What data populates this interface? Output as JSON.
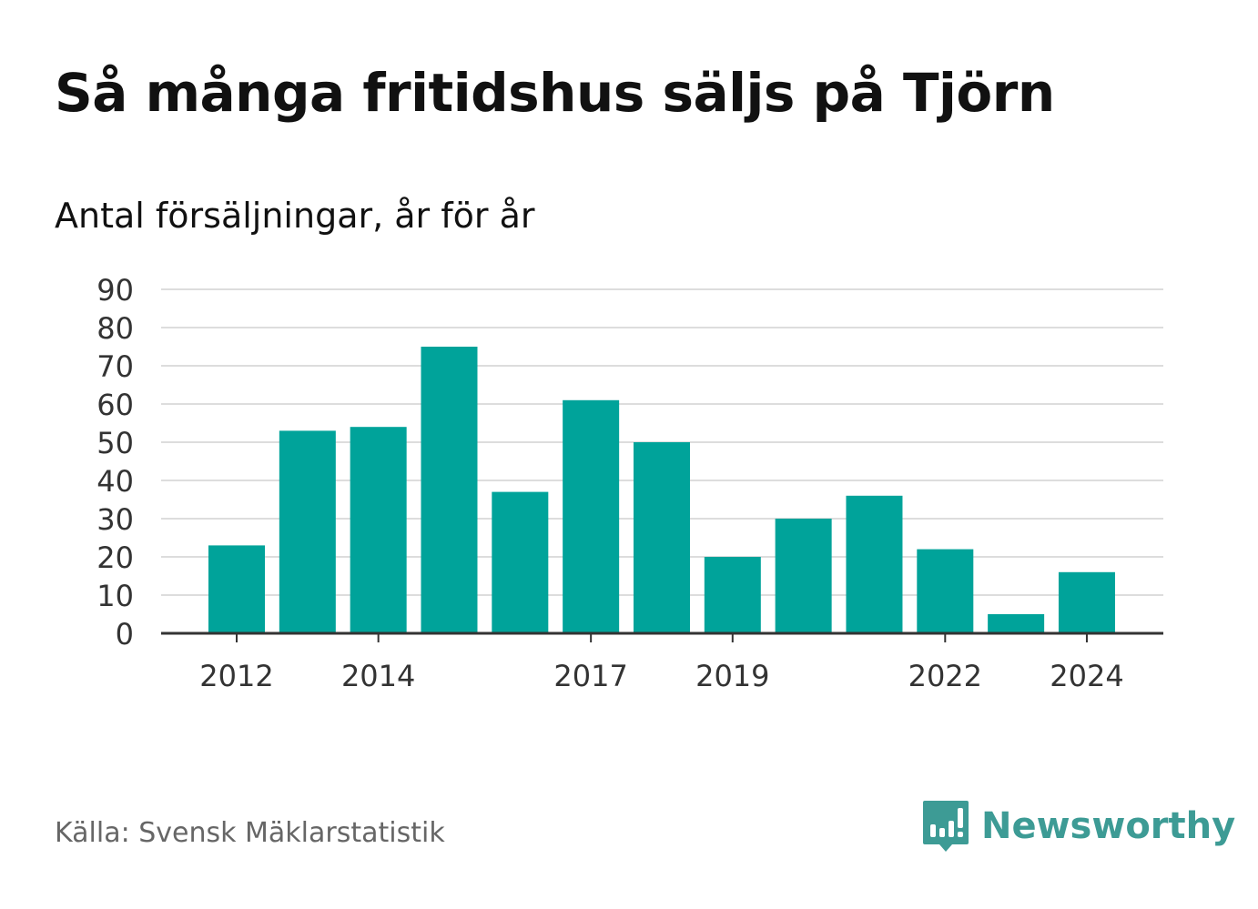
{
  "header": {
    "title": "Så många fritidshus säljs på Tjörn",
    "subtitle": "Antal försäljningar, år för år"
  },
  "footer": {
    "source": "Källa: Svensk Mäklarstatistik",
    "brand": "Newsworthy",
    "brand_icon": "bar-chart-speech-bubble-icon"
  },
  "colors": {
    "bar": "#00a39a",
    "grid": "#dddddd",
    "axis": "#333333",
    "brand": "#3d9b95"
  },
  "chart_data": {
    "type": "bar",
    "categories": [
      "2012",
      "2013",
      "2014",
      "2015",
      "2016",
      "2017",
      "2018",
      "2019",
      "2020",
      "2021",
      "2022",
      "2023",
      "2024"
    ],
    "values": [
      23,
      53,
      54,
      75,
      37,
      61,
      50,
      20,
      30,
      36,
      22,
      5,
      16
    ],
    "x_tick_labels": [
      "2012",
      "2014",
      "2017",
      "2019",
      "2022",
      "2024"
    ],
    "y_ticks": [
      0,
      10,
      20,
      30,
      40,
      50,
      60,
      70,
      80,
      90
    ],
    "ylim": [
      0,
      90
    ],
    "grid": true,
    "legend": "none"
  }
}
